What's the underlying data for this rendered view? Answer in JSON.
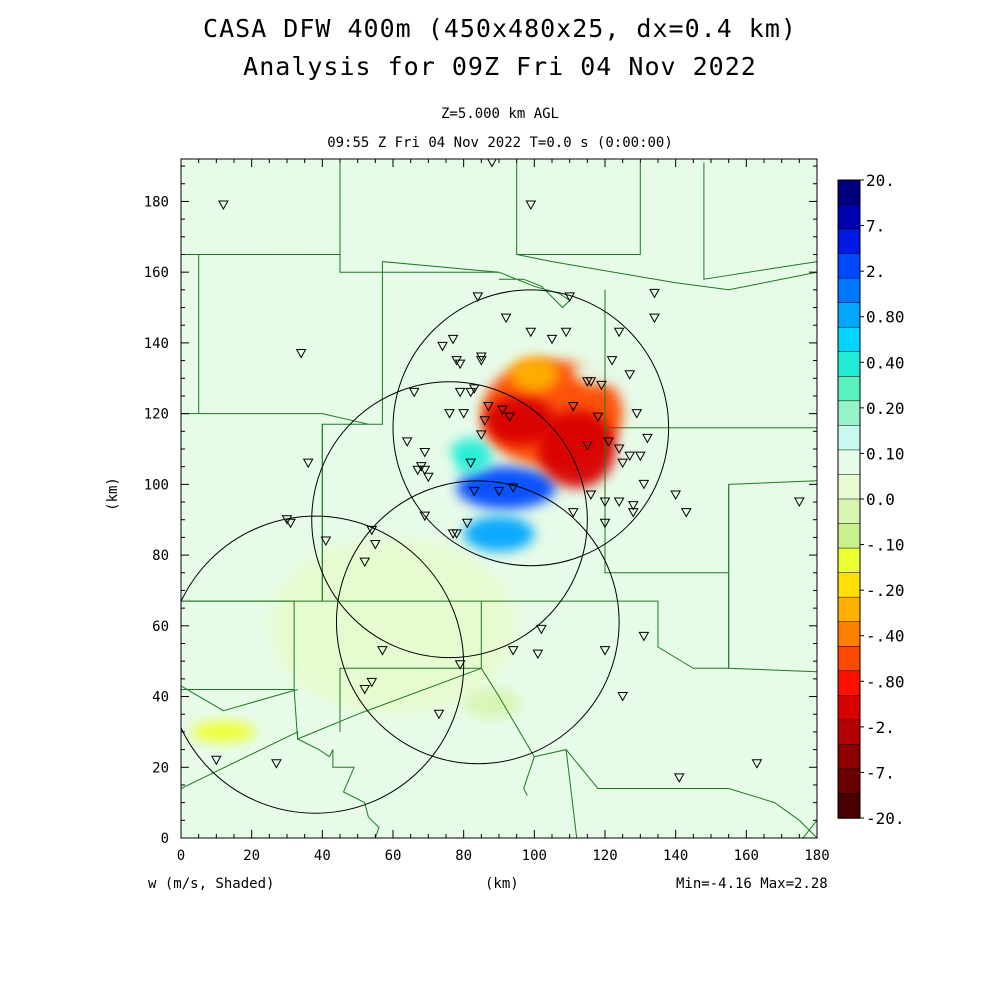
{
  "title": "CASA DFW 400m (450x480x25, dx=0.4 km)",
  "subtitle": "Analysis for 09Z Fri 04 Nov 2022",
  "level_label": "Z=5.000 km AGL",
  "time_label": "09:55 Z Fri 04 Nov 2022    T=0.0 s (0:00:00)",
  "field_label": "w (m/s, Shaded)",
  "minmax_label": "Min=-4.16 Max=2.28",
  "chart_data": {
    "type": "heatmap",
    "xlabel": "(km)",
    "ylabel": "(km)",
    "xlim": [
      0,
      180
    ],
    "ylim": [
      0,
      192
    ],
    "x_ticks": [
      0,
      20,
      40,
      60,
      80,
      100,
      120,
      140,
      160,
      180
    ],
    "y_ticks": [
      0,
      20,
      40,
      60,
      80,
      100,
      120,
      140,
      160,
      180
    ],
    "colorbar": {
      "labels": [
        "20.",
        "7.",
        "2.",
        "0.80",
        "0.40",
        "0.20",
        "0.10",
        "0.0",
        "-.10",
        "-.20",
        "-.40",
        "-.80",
        "-2.",
        "-7.",
        "-20."
      ],
      "colors": [
        "#00007d",
        "#0000b3",
        "#0019e6",
        "#0048ff",
        "#0077ff",
        "#00a6ff",
        "#00d4ff",
        "#22ecd8",
        "#5af0c0",
        "#95f5c8",
        "#c8faf0",
        "#e6fbe8",
        "#e8fbd0",
        "#d8f5b0",
        "#c8f08c",
        "#ecff30",
        "#ffe000",
        "#ffb000",
        "#ff8000",
        "#ff4800",
        "#ff1000",
        "#d80000",
        "#b40000",
        "#8c0000",
        "#6a0000",
        "#4a0000"
      ]
    },
    "blobs": [
      {
        "x": 92,
        "y": 99,
        "w": 28,
        "h": 12,
        "value": 2.0
      },
      {
        "x": 90,
        "y": 86,
        "w": 20,
        "h": 10,
        "value": 0.8
      },
      {
        "x": 82,
        "y": 108,
        "w": 12,
        "h": 10,
        "value": 0.5
      },
      {
        "x": 105,
        "y": 120,
        "w": 40,
        "h": 30,
        "value": -0.8
      },
      {
        "x": 112,
        "y": 110,
        "w": 22,
        "h": 22,
        "value": -2.0
      },
      {
        "x": 96,
        "y": 118,
        "w": 20,
        "h": 14,
        "value": -2.0
      },
      {
        "x": 100,
        "y": 131,
        "w": 14,
        "h": 10,
        "value": -0.4
      },
      {
        "x": 118,
        "y": 132,
        "w": 14,
        "h": 8,
        "value": 0.1
      },
      {
        "x": 70,
        "y": 105,
        "w": 14,
        "h": 10,
        "value": 0.1
      },
      {
        "x": 60,
        "y": 60,
        "w": 70,
        "h": 50,
        "value": -0.05
      },
      {
        "x": 12,
        "y": 30,
        "w": 18,
        "h": 6,
        "value": -0.2
      },
      {
        "x": 88,
        "y": 38,
        "w": 16,
        "h": 8,
        "value": -0.12
      },
      {
        "x": 30,
        "y": 168,
        "w": 30,
        "h": 10,
        "value": 0.1
      }
    ],
    "radar_rings": [
      {
        "x": 99,
        "y": 116,
        "r": 39
      },
      {
        "x": 76,
        "y": 90,
        "r": 39
      },
      {
        "x": 84,
        "y": 61,
        "r": 40
      },
      {
        "x": 38,
        "y": 49,
        "r": 42
      }
    ],
    "stations": [
      [
        88,
        191
      ],
      [
        99,
        179
      ],
      [
        12,
        179
      ],
      [
        84,
        153
      ],
      [
        110,
        153
      ],
      [
        134,
        154
      ],
      [
        134,
        147
      ],
      [
        92,
        147
      ],
      [
        109,
        143
      ],
      [
        99,
        143
      ],
      [
        124,
        143
      ],
      [
        127,
        131
      ],
      [
        77,
        141
      ],
      [
        74,
        139
      ],
      [
        34,
        137
      ],
      [
        78,
        135
      ],
      [
        79,
        134
      ],
      [
        85,
        136
      ],
      [
        85,
        135
      ],
      [
        122,
        135
      ],
      [
        105,
        141
      ],
      [
        115,
        129
      ],
      [
        116,
        129
      ],
      [
        119,
        128
      ],
      [
        82,
        126
      ],
      [
        83,
        127
      ],
      [
        79,
        126
      ],
      [
        87,
        122
      ],
      [
        91,
        121
      ],
      [
        66,
        126
      ],
      [
        76,
        120
      ],
      [
        80,
        120
      ],
      [
        111,
        122
      ],
      [
        129,
        120
      ],
      [
        93,
        119
      ],
      [
        86,
        118
      ],
      [
        118,
        119
      ],
      [
        64,
        112
      ],
      [
        85,
        114
      ],
      [
        115,
        111
      ],
      [
        132,
        113
      ],
      [
        121,
        112
      ],
      [
        124,
        110
      ],
      [
        127,
        108
      ],
      [
        125,
        106
      ],
      [
        130,
        108
      ],
      [
        36,
        106
      ],
      [
        82,
        106
      ],
      [
        69,
        109
      ],
      [
        68,
        105
      ],
      [
        67,
        104
      ],
      [
        69,
        104
      ],
      [
        70,
        102
      ],
      [
        83,
        98
      ],
      [
        90,
        98
      ],
      [
        94,
        99
      ],
      [
        131,
        100
      ],
      [
        140,
        97
      ],
      [
        143,
        92
      ],
      [
        116,
        97
      ],
      [
        120,
        95
      ],
      [
        124,
        95
      ],
      [
        128,
        94
      ],
      [
        128,
        92
      ],
      [
        111,
        92
      ],
      [
        69,
        91
      ],
      [
        120,
        89
      ],
      [
        81,
        89
      ],
      [
        30,
        90
      ],
      [
        31,
        89
      ],
      [
        77,
        86
      ],
      [
        78,
        86
      ],
      [
        54,
        87
      ],
      [
        55,
        83
      ],
      [
        41,
        84
      ],
      [
        52,
        78
      ],
      [
        102,
        59
      ],
      [
        131,
        57
      ],
      [
        57,
        53
      ],
      [
        94,
        53
      ],
      [
        101,
        52
      ],
      [
        120,
        53
      ],
      [
        79,
        49
      ],
      [
        54,
        44
      ],
      [
        52,
        42
      ],
      [
        125,
        40
      ],
      [
        73,
        35
      ],
      [
        10,
        22
      ],
      [
        27,
        21
      ],
      [
        141,
        17
      ],
      [
        163,
        21
      ],
      [
        175,
        95
      ]
    ],
    "boundaries": [
      [
        [
          0,
          165
        ],
        [
          39,
          165
        ],
        [
          45,
          165
        ],
        [
          45,
          191
        ]
      ],
      [
        [
          45,
          191
        ],
        [
          45,
          160
        ],
        [
          90,
          160
        ],
        [
          100,
          156
        ],
        [
          107,
          154
        ],
        [
          110,
          152
        ],
        [
          108,
          150
        ],
        [
          102,
          156
        ],
        [
          97,
          158
        ],
        [
          90,
          158
        ]
      ],
      [
        [
          5,
          165
        ],
        [
          5,
          120
        ],
        [
          40,
          120
        ],
        [
          53,
          117
        ],
        [
          40,
          117
        ],
        [
          40,
          67
        ],
        [
          0,
          67
        ]
      ],
      [
        [
          0,
          120
        ],
        [
          5,
          120
        ]
      ],
      [
        [
          40,
          117
        ],
        [
          40,
          67
        ],
        [
          85,
          67
        ],
        [
          85,
          48
        ],
        [
          90,
          40
        ],
        [
          100,
          23
        ],
        [
          97,
          14
        ],
        [
          98,
          12
        ]
      ],
      [
        [
          53,
          117
        ],
        [
          57,
          117
        ],
        [
          57,
          163
        ],
        [
          90,
          160
        ]
      ],
      [
        [
          95,
          191
        ],
        [
          95,
          165
        ],
        [
          130,
          165
        ],
        [
          130,
          191
        ]
      ],
      [
        [
          148,
          191
        ],
        [
          148,
          158
        ],
        [
          180,
          163
        ]
      ],
      [
        [
          95,
          165
        ],
        [
          105,
          163
        ],
        [
          140,
          157
        ],
        [
          155,
          155
        ],
        [
          180,
          160
        ]
      ],
      [
        [
          120,
          155
        ],
        [
          120,
          116
        ],
        [
          180,
          116
        ]
      ],
      [
        [
          120,
          116
        ],
        [
          120,
          75
        ],
        [
          155,
          75
        ],
        [
          155,
          100
        ],
        [
          180,
          101
        ]
      ],
      [
        [
          155,
          100
        ],
        [
          155,
          48
        ],
        [
          180,
          47
        ]
      ],
      [
        [
          85,
          67
        ],
        [
          135,
          67
        ],
        [
          135,
          54
        ],
        [
          145,
          48
        ],
        [
          155,
          48
        ]
      ],
      [
        [
          0,
          67
        ],
        [
          32,
          67
        ],
        [
          32,
          42
        ],
        [
          0,
          42
        ]
      ],
      [
        [
          0,
          43
        ],
        [
          12,
          36
        ],
        [
          33,
          42
        ]
      ],
      [
        [
          32,
          42
        ],
        [
          33,
          28
        ],
        [
          50,
          35
        ],
        [
          85,
          48
        ]
      ],
      [
        [
          0,
          14
        ],
        [
          33,
          30
        ],
        [
          33,
          28
        ]
      ],
      [
        [
          33,
          28
        ],
        [
          39,
          25
        ],
        [
          42,
          23
        ],
        [
          43,
          25
        ],
        [
          43,
          20
        ],
        [
          49,
          20
        ],
        [
          46,
          13
        ],
        [
          52,
          10
        ],
        [
          53,
          6
        ],
        [
          56,
          3
        ],
        [
          55,
          0
        ]
      ],
      [
        [
          100,
          23
        ],
        [
          109,
          25
        ],
        [
          118,
          14
        ],
        [
          135,
          14
        ],
        [
          155,
          14
        ],
        [
          168,
          10
        ],
        [
          175,
          5
        ],
        [
          180,
          0
        ]
      ],
      [
        [
          109,
          25
        ],
        [
          112,
          0
        ]
      ],
      [
        [
          85,
          48
        ],
        [
          45,
          48
        ],
        [
          45,
          30
        ]
      ],
      [
        [
          155,
          48
        ],
        [
          155,
          75
        ]
      ],
      [
        [
          180,
          5
        ],
        [
          176,
          0
        ]
      ]
    ]
  }
}
